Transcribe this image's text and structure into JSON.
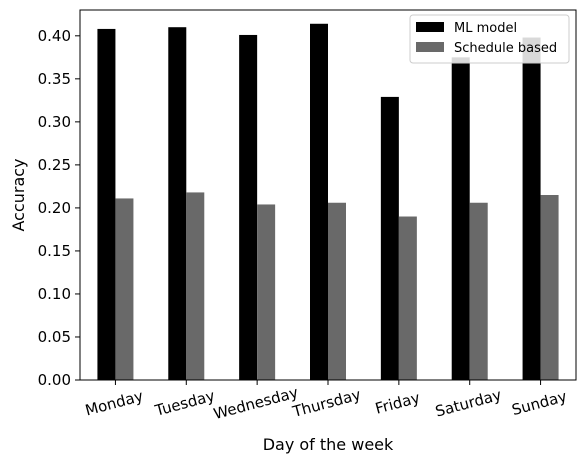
{
  "chart_data": {
    "type": "bar",
    "xlabel": "Day of the week",
    "ylabel": "Accuracy",
    "categories": [
      "Monday",
      "Tuesday",
      "Wednesday",
      "Thursday",
      "Friday",
      "Saturday",
      "Sunday"
    ],
    "series": [
      {
        "name": "ML model",
        "color": "#000000",
        "values": [
          0.408,
          0.41,
          0.401,
          0.414,
          0.329,
          0.375,
          0.398
        ]
      },
      {
        "name": "Schedule based",
        "color": "#696969",
        "values": [
          0.211,
          0.218,
          0.204,
          0.206,
          0.19,
          0.206,
          0.215
        ]
      }
    ],
    "ylim": [
      0,
      0.43
    ],
    "yticks": [
      "0.00",
      "0.05",
      "0.10",
      "0.15",
      "0.20",
      "0.25",
      "0.30",
      "0.35",
      "0.40"
    ],
    "ytick_values": [
      0,
      0.05,
      0.1,
      0.15,
      0.2,
      0.25,
      0.3,
      0.35,
      0.4
    ],
    "grid": false,
    "legend_position": "top-right"
  }
}
